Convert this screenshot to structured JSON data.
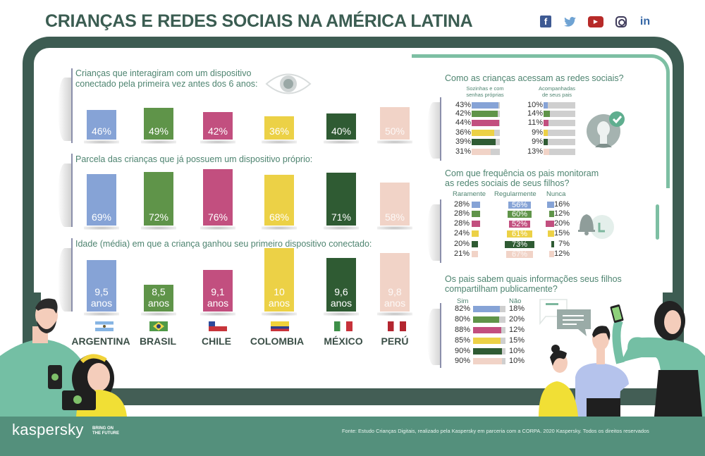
{
  "header": {
    "title": "CRIANÇAS E REDES SOCIAIS NA AMÉRICA LATINA",
    "social_icons": [
      {
        "name": "facebook-icon",
        "glyph": "f"
      },
      {
        "name": "twitter-icon",
        "glyph": "🐦"
      },
      {
        "name": "youtube-icon",
        "glyph": "▶"
      },
      {
        "name": "instagram-icon",
        "glyph": ""
      },
      {
        "name": "linkedin-icon",
        "glyph": "in"
      }
    ]
  },
  "colors": {
    "argentina": "#86a3d6",
    "brasil": "#5f9449",
    "chile": "#c24f7f",
    "colombia": "#ecd146",
    "mexico": "#2f5b33",
    "peru": "#f1d3c7",
    "frame": "#3d5c52",
    "accent": "#54907c"
  },
  "countries": [
    "ARGENTINA",
    "BRASIL",
    "CHILE",
    "COLOMBIA",
    "MÉXICO",
    "PERÚ"
  ],
  "chart_data": [
    {
      "type": "bar",
      "title": "Crianças que interagiram com um dispositivo conectado pela primeira vez antes dos 6 anos:",
      "categories": [
        "ARGENTINA",
        "BRASIL",
        "CHILE",
        "COLOMBIA",
        "MÉXICO",
        "PERÚ"
      ],
      "values": [
        46,
        49,
        42,
        36,
        40,
        50
      ],
      "labels": [
        "46%",
        "49%",
        "42%",
        "36%",
        "40%",
        "50%"
      ],
      "unit": "%"
    },
    {
      "type": "bar",
      "title": "Parcela das crianças que já possuem um dispositivo próprio:",
      "categories": [
        "ARGENTINA",
        "BRASIL",
        "CHILE",
        "COLOMBIA",
        "MÉXICO",
        "PERÚ"
      ],
      "values": [
        69,
        72,
        76,
        68,
        71,
        58
      ],
      "labels": [
        "69%",
        "72%",
        "76%",
        "68%",
        "71%",
        "58%"
      ],
      "unit": "%"
    },
    {
      "type": "bar",
      "title": "Idade (média) em que a criança ganhou seu primeiro dispositivo conectado:",
      "categories": [
        "ARGENTINA",
        "BRASIL",
        "CHILE",
        "COLOMBIA",
        "MÉXICO",
        "PERÚ"
      ],
      "values": [
        9.5,
        8.5,
        9.1,
        10,
        9.6,
        9.8
      ],
      "labels": [
        "9,5",
        "8,5",
        "9,1",
        "10",
        "9,6",
        "9,8"
      ],
      "unit_label": "anos"
    },
    {
      "type": "bar",
      "title": "Como as crianças acessam as redes sociais?",
      "categories": [
        "ARGENTINA",
        "BRASIL",
        "CHILE",
        "COLOMBIA",
        "MÉXICO",
        "PERÚ"
      ],
      "series": [
        {
          "name": "Sozinhas e com senhas próprias",
          "values": [
            43,
            42,
            44,
            36,
            39,
            31
          ]
        },
        {
          "name": "Acompanhadas de seus pais",
          "values": [
            10,
            14,
            11,
            9,
            9,
            13
          ]
        }
      ],
      "unit": "%"
    },
    {
      "type": "bar",
      "title": "Com que frequência os pais monitoram as redes sociais de seus filhos?",
      "categories": [
        "ARGENTINA",
        "BRASIL",
        "CHILE",
        "COLOMBIA",
        "MÉXICO",
        "PERÚ"
      ],
      "series": [
        {
          "name": "Raramente",
          "values": [
            28,
            28,
            28,
            24,
            20,
            21
          ]
        },
        {
          "name": "Regularmente",
          "values": [
            56,
            60,
            52,
            61,
            73,
            67
          ]
        },
        {
          "name": "Nunca",
          "values": [
            16,
            12,
            20,
            15,
            7,
            12
          ]
        }
      ],
      "unit": "%"
    },
    {
      "type": "bar",
      "title": "Os pais sabem quais informações seus filhos compartilham publicamente?",
      "categories": [
        "ARGENTINA",
        "BRASIL",
        "CHILE",
        "COLOMBIA",
        "MÉXICO",
        "PERÚ"
      ],
      "series": [
        {
          "name": "Sim",
          "values": [
            82,
            80,
            88,
            85,
            90,
            90
          ]
        },
        {
          "name": "Não",
          "values": [
            18,
            20,
            12,
            15,
            10,
            10
          ]
        }
      ],
      "unit": "%"
    }
  ],
  "access": {
    "col1": "Sozinhas e com senhas próprias",
    "col2": "Acompanhadas de seus pais"
  },
  "monitor": {
    "title_line1": "Com que frequência os pais monitoram",
    "title_line2": "as redes sociais de seus filhos?",
    "col1": "Raramente",
    "col2": "Regularmente",
    "col3": "Nunca"
  },
  "know": {
    "title_line1": "Os pais sabem quais informações seus filhos",
    "title_line2": "compartilham publicamente?",
    "col1": "Sim",
    "col2": "Não"
  },
  "sections": {
    "s1_line1": "Crianças que interagiram com um dispositivo",
    "s1_line2": "conectado pela primeira vez antes dos 6 anos:",
    "s2": "Parcela das crianças que já possuem um dispositivo próprio:",
    "s3": "Idade (média) em que a criança ganhou seu primeiro dispositivo conectado:",
    "access_title": "Como as crianças acessam as redes sociais?"
  },
  "footer": {
    "logo": "kaspersky",
    "tagline_line1": "BRING ON",
    "tagline_line2": "THE FUTURE",
    "source": "Fonte: Estudo Crianças Digitais, realizado pela Kaspersky em parceria com a CORPA. 2020 Kaspersky. Todos os direitos reservados"
  }
}
